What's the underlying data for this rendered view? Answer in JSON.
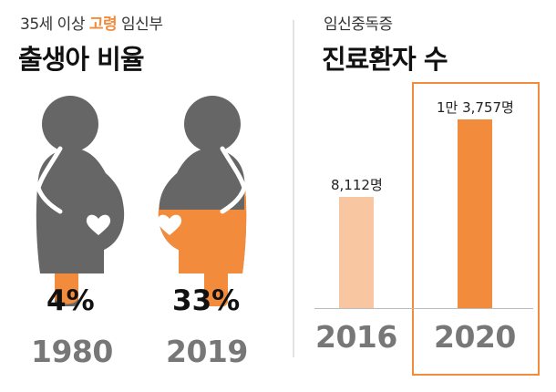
{
  "left_panel": {
    "subtitle_pre": "35세 이상 ",
    "subtitle_accent": "고령",
    "subtitle_post": " 임신부",
    "title": "출생아 비율",
    "items": [
      {
        "year": "1980",
        "percent_label": "4%",
        "value": 4
      },
      {
        "year": "2019",
        "percent_label": "33%",
        "value": 33
      }
    ]
  },
  "right_panel": {
    "subtitle": "임신중독증",
    "title": "진료환자 수"
  },
  "colors": {
    "accent": "#f28c3c",
    "accent_light": "#f8c6a1",
    "figure_gray": "#666666",
    "year_gray": "#777777"
  },
  "chart_data": [
    {
      "type": "pictogram",
      "title": "35세 이상 고령 임신부 출생아 비율",
      "categories": [
        "1980",
        "2019"
      ],
      "values": [
        4,
        33
      ],
      "unit": "%"
    },
    {
      "type": "bar",
      "title": "임신중독증 진료환자 수",
      "categories": [
        "2016",
        "2020"
      ],
      "values": [
        8112,
        13757
      ],
      "data_labels": [
        "8,112명",
        "1만 3,757명"
      ],
      "highlight": "2020",
      "ylim": [
        0,
        13757
      ]
    }
  ]
}
